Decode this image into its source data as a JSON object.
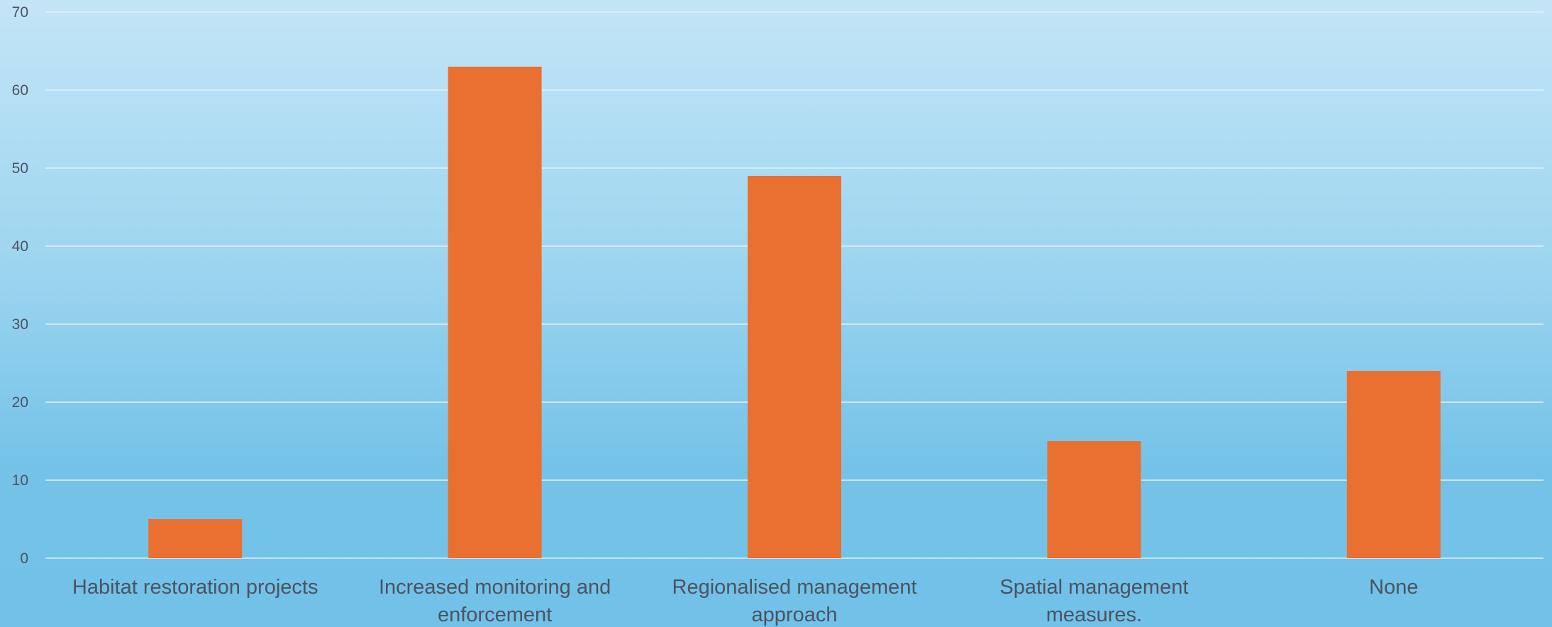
{
  "chart_data": {
    "type": "bar",
    "categories": [
      "Habitat restoration projects",
      "Increased monitoring and enforcement",
      "Regionalised management approach",
      "Spatial management measures.",
      "None"
    ],
    "category_lines": [
      [
        "Habitat restoration projects"
      ],
      [
        "Increased monitoring and",
        "enforcement"
      ],
      [
        "Regionalised management",
        "approach"
      ],
      [
        "Spatial management",
        "measures."
      ],
      [
        "None"
      ]
    ],
    "values": [
      5,
      63,
      49,
      15,
      24
    ],
    "yticks": [
      "0",
      "10",
      "20",
      "30",
      "40",
      "50",
      "60",
      "70"
    ],
    "ylim": [
      0,
      70
    ],
    "grid": true,
    "legend": "none",
    "colors": {
      "bar": "#ea7031",
      "grid": "#e3f1f9",
      "text": "#4a5460"
    }
  }
}
